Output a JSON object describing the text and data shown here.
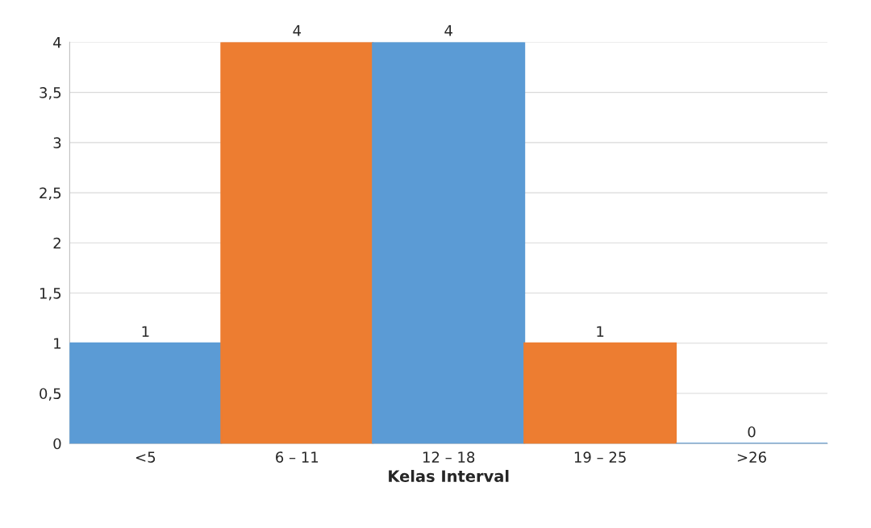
{
  "chart_data": {
    "type": "bar",
    "xlabel": "Kelas Interval",
    "categories": [
      "<5",
      "6 – 11",
      "12 – 18",
      "19 – 25",
      ">26"
    ],
    "values": [
      1,
      4,
      4,
      1,
      0
    ],
    "colors": [
      "#5b9bd5",
      "#ed7d31",
      "#5b9bd5",
      "#ed7d31",
      "#5b9bd5"
    ],
    "ylim": [
      0,
      4
    ],
    "yticks": [
      0,
      {
        "value": 0.5,
        "label": "0,5"
      },
      1,
      {
        "value": 1.5,
        "label": "1,5"
      },
      2,
      {
        "value": 2.5,
        "label": "2,5"
      },
      3,
      {
        "value": 3.5,
        "label": "3,5"
      },
      4
    ],
    "grid": "y",
    "data_labels": true,
    "legend": false
  }
}
